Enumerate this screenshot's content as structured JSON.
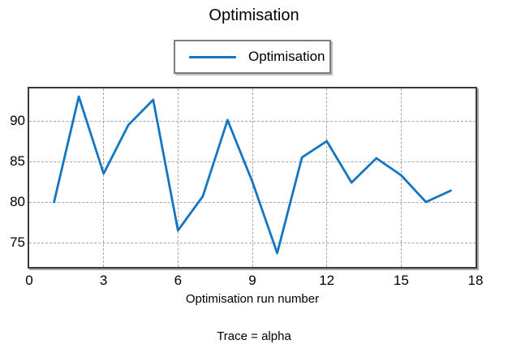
{
  "title": "Optimisation",
  "legend": {
    "label": "Optimisation"
  },
  "xlabel": "Optimisation run number",
  "caption": "Trace = alpha",
  "colors": {
    "line": "#1276c3",
    "grid": "#a6a6a6",
    "axis_border": "#3a3a3a",
    "legend_border": "#7d7d7d",
    "text": "#000000",
    "background": "#ffffff"
  },
  "axes": {
    "x_ticks": [
      0,
      3,
      6,
      9,
      12,
      15,
      18
    ],
    "y_ticks": [
      75,
      80,
      85,
      90
    ]
  },
  "chart_data": {
    "type": "line",
    "title": "Optimisation",
    "xlabel": "Optimisation run number",
    "ylabel": "",
    "legend_entries": [
      "Optimisation"
    ],
    "legend_position": "top-center",
    "grid": true,
    "x": [
      1,
      2,
      3,
      4,
      5,
      6,
      7,
      8,
      9,
      10,
      11,
      12,
      13,
      14,
      15,
      16,
      17
    ],
    "series": [
      {
        "name": "Optimisation",
        "values": [
          80.0,
          93.0,
          83.5,
          89.5,
          92.6,
          76.5,
          80.7,
          90.1,
          82.5,
          73.7,
          85.5,
          87.5,
          82.4,
          85.4,
          83.3,
          80.0,
          81.4
        ]
      }
    ],
    "xlim": [
      0,
      18
    ],
    "ylim": [
      72,
      94
    ],
    "annotations": [
      "Trace = alpha"
    ]
  }
}
